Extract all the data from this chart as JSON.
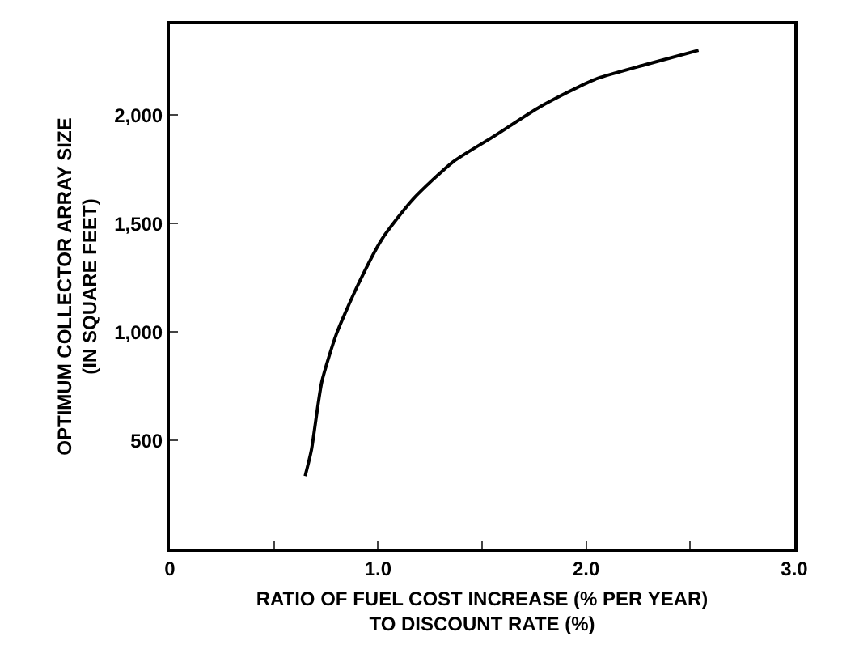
{
  "chart_data": {
    "type": "line",
    "xlabel": "RATIO OF FUEL COST INCREASE (% PER YEAR)\nTO DISCOUNT RATE (%)",
    "ylabel": "OPTIMUM COLLECTOR ARRAY SIZE\n(IN SQUARE FEET)",
    "xlim": [
      0,
      3.0
    ],
    "xticks": [
      0,
      {
        "value": 0.5,
        "label": null
      },
      {
        "value": 1,
        "label": "1.0"
      },
      {
        "value": 1.5,
        "label": null
      },
      {
        "value": 2,
        "label": "2.0"
      },
      {
        "value": 2.5,
        "label": null
      },
      {
        "value": 3,
        "label": "3.0"
      }
    ],
    "ylim": [
      0,
      2420
    ],
    "yticks": [
      {
        "value": 500,
        "label": "500"
      },
      {
        "value": 1000,
        "label": "1,000"
      },
      {
        "value": 1500,
        "label": "1,500"
      },
      {
        "value": 2000,
        "label": "2,000"
      }
    ],
    "grid": false,
    "marker": "none",
    "line_style": "solid",
    "series": [
      {
        "color": "#000000",
        "x": [
          0.65,
          0.68,
          0.73,
          0.8,
          0.9,
          1.02,
          1.17,
          1.36,
          1.56,
          1.78,
          2.04,
          2.29,
          2.54
        ],
        "values": [
          335,
          455,
          770,
          990,
          1210,
          1430,
          1615,
          1785,
          1905,
          2040,
          2165,
          2235,
          2300
        ]
      }
    ]
  }
}
